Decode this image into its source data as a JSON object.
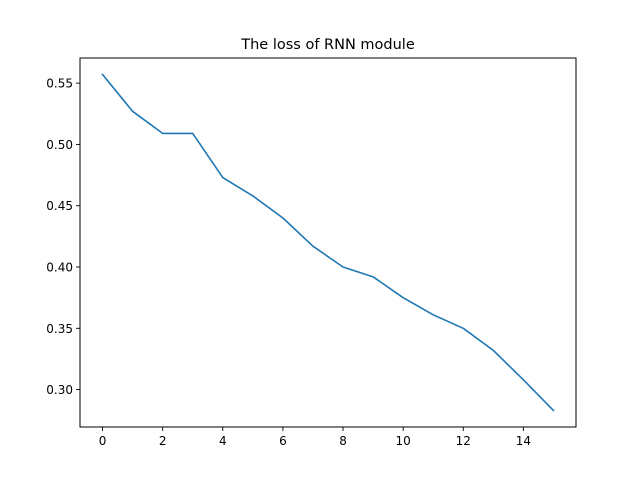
{
  "chart_data": {
    "type": "line",
    "title": "The loss of RNN module",
    "xlabel": "",
    "ylabel": "",
    "grid": false,
    "xlim": [
      -0.75,
      15.75
    ],
    "ylim": [
      0.2695,
      0.5705
    ],
    "x_ticks": [
      0,
      2,
      4,
      6,
      8,
      10,
      12,
      14
    ],
    "x_tick_labels": [
      "0",
      "2",
      "4",
      "6",
      "8",
      "10",
      "12",
      "14"
    ],
    "y_ticks": [
      0.3,
      0.35,
      0.4,
      0.45,
      0.5,
      0.55
    ],
    "y_tick_labels": [
      "0.30",
      "0.35",
      "0.40",
      "0.45",
      "0.50",
      "0.55"
    ],
    "series": [
      {
        "color": "#1f77b4",
        "x": [
          0,
          1,
          2,
          3,
          4,
          5,
          6,
          7,
          8,
          9,
          10,
          11,
          12,
          13,
          14,
          15
        ],
        "y": [
          0.557,
          0.527,
          0.509,
          0.509,
          0.473,
          0.458,
          0.44,
          0.417,
          0.4,
          0.392,
          0.375,
          0.361,
          0.35,
          0.332,
          0.308,
          0.283
        ]
      }
    ]
  }
}
